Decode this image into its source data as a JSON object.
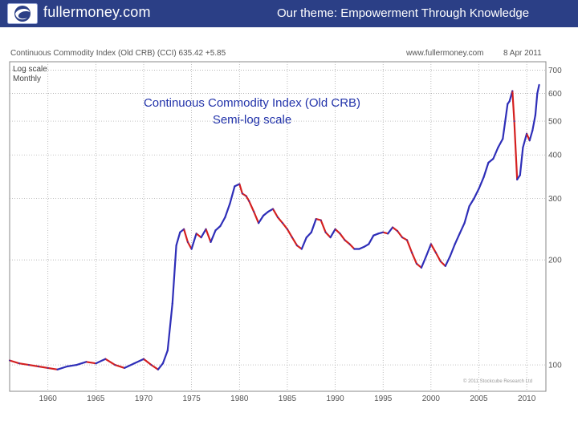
{
  "header": {
    "site_name": "fullermoney.com",
    "tagline": "Our theme: Empowerment Through Knowledge",
    "bar_color": "#2b3f86",
    "logo_icon": "globe-swirl-icon"
  },
  "chart_header": {
    "left": "Continuous Commodity Index (Old CRB) (CCI) 635.42 +5.85",
    "site": "www.fullermoney.com",
    "date": "8 Apr 2011",
    "scale_note_1": "Log scale",
    "scale_note_2": "Monthly",
    "copyright": "© 2011 Stockcube Research Ltd"
  },
  "chart_data": {
    "type": "line",
    "title": "Continuous Commodity Index (Old CRB)",
    "subtitle": "Semi-log scale",
    "xlabel": "",
    "ylabel": "",
    "y_scale": "log",
    "x_ticks": [
      "1960",
      "1965",
      "1970",
      "1975",
      "1980",
      "1985",
      "1990",
      "1995",
      "2000",
      "2005",
      "2010"
    ],
    "y_ticks": [
      100,
      200,
      300,
      400,
      500,
      600,
      700
    ],
    "xlim": [
      1956,
      2012
    ],
    "ylim": [
      84,
      740
    ],
    "colors": {
      "up": "#2e2eb8",
      "down": "#d42020",
      "grid": "#a0a0a0"
    },
    "series": [
      {
        "x": [
          1956.0,
          1957.0,
          1958.0,
          1959.0,
          1960.0,
          1961.0,
          1962.0,
          1963.0,
          1964.0,
          1965.0,
          1966.0,
          1967.0,
          1968.0,
          1969.0,
          1970.0,
          1970.8,
          1971.5,
          1972.0,
          1972.5,
          1973.0,
          1973.4,
          1973.8,
          1974.2,
          1974.6,
          1975.0,
          1975.5,
          1976.0,
          1976.5,
          1977.0,
          1977.5,
          1978.0,
          1978.5,
          1979.0,
          1979.5,
          1980.0,
          1980.3,
          1980.7,
          1981.0,
          1981.5,
          1982.0,
          1982.5,
          1983.0,
          1983.5,
          1984.0,
          1984.5,
          1985.0,
          1985.5,
          1986.0,
          1986.5,
          1987.0,
          1987.5,
          1988.0,
          1988.5,
          1989.0,
          1989.5,
          1990.0,
          1990.5,
          1991.0,
          1991.5,
          1992.0,
          1992.5,
          1993.0,
          1993.5,
          1994.0,
          1994.5,
          1995.0,
          1995.5,
          1996.0,
          1996.5,
          1997.0,
          1997.5,
          1998.0,
          1998.5,
          1999.0,
          1999.5,
          2000.0,
          2000.5,
          2001.0,
          2001.5,
          2002.0,
          2002.5,
          2003.0,
          2003.5,
          2004.0,
          2004.5,
          2005.0,
          2005.5,
          2006.0,
          2006.5,
          2007.0,
          2007.5,
          2008.0,
          2008.2,
          2008.5,
          2008.7,
          2009.0,
          2009.3,
          2009.6,
          2010.0,
          2010.3,
          2010.6,
          2010.9,
          2011.1,
          2011.3
        ],
        "y": [
          103,
          101,
          100,
          99,
          98,
          97,
          99,
          100,
          102,
          101,
          104,
          100,
          98,
          101,
          104,
          100,
          97,
          101,
          110,
          150,
          220,
          240,
          245,
          225,
          215,
          238,
          232,
          245,
          225,
          243,
          250,
          265,
          290,
          325,
          330,
          310,
          305,
          295,
          275,
          255,
          268,
          275,
          280,
          265,
          255,
          245,
          232,
          220,
          215,
          232,
          240,
          262,
          260,
          240,
          232,
          245,
          238,
          228,
          222,
          215,
          215,
          218,
          222,
          235,
          238,
          240,
          238,
          248,
          242,
          232,
          228,
          210,
          195,
          190,
          205,
          222,
          210,
          198,
          192,
          205,
          222,
          238,
          255,
          285,
          300,
          320,
          345,
          380,
          390,
          420,
          445,
          560,
          570,
          610,
          500,
          340,
          350,
          420,
          460,
          440,
          470,
          520,
          600,
          635
        ]
      }
    ]
  }
}
